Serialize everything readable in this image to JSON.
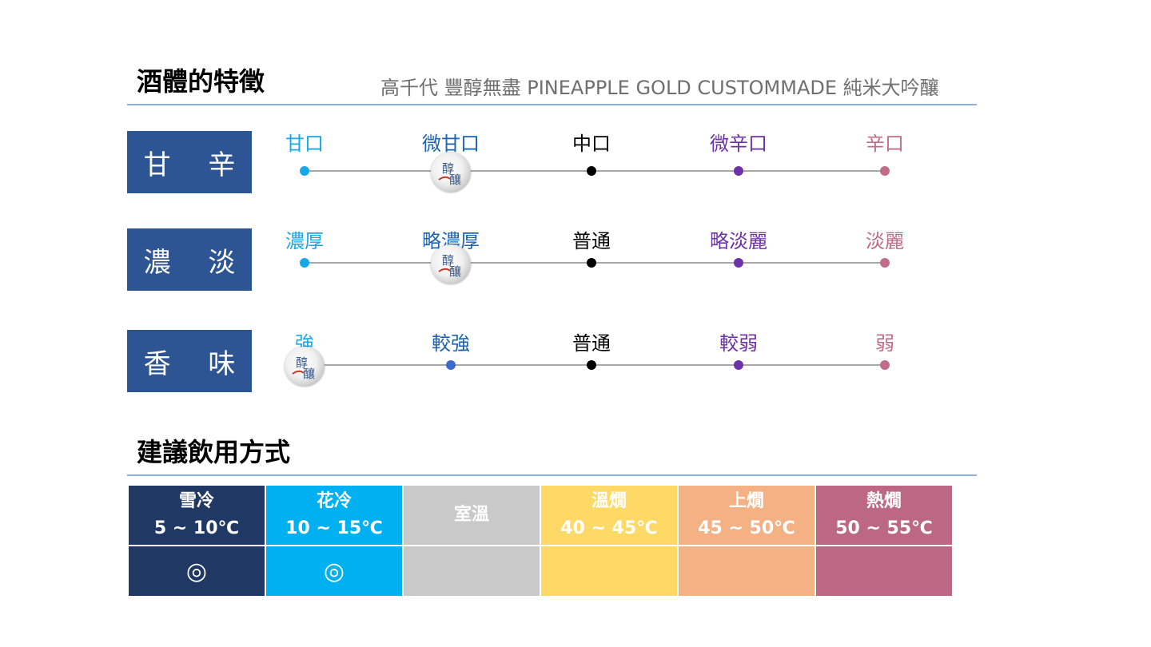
{
  "sections": {
    "character_title": "酒體的特徵",
    "product_name": "高千代 豐醇無盡 PINEAPPLE GOLD CUSTOMMADE 純米大吟釀",
    "drinking_title": "建議飲用方式"
  },
  "traits": [
    {
      "label": "甘 辛",
      "levels": [
        "甘口",
        "微甘口",
        "中口",
        "微辛口",
        "辛口"
      ],
      "selected_index": 1
    },
    {
      "label": "濃 淡",
      "levels": [
        "濃厚",
        "略濃厚",
        "普通",
        "略淡麗",
        "淡麗"
      ],
      "selected_index": 1
    },
    {
      "label": "香 味",
      "levels": [
        "強",
        "較強",
        "普通",
        "較弱",
        "弱"
      ],
      "selected_index": 0
    }
  ],
  "level_colors": [
    "#17a8e8",
    "#1c64b0",
    "#000000",
    "#6e32a8",
    "#c06d86"
  ],
  "marker_icon": "brewery-logo-icon",
  "marker_logo_text": "醇釀",
  "temperatures": [
    {
      "name": "雪冷",
      "range": "5 ~ 10℃",
      "mark": "◎",
      "color": "#1f3864"
    },
    {
      "name": "花冷",
      "range": "10 ~ 15℃",
      "mark": "◎",
      "color": "#00b0f0"
    },
    {
      "name": "室溫",
      "range": "",
      "mark": "",
      "color": "#c9c9c9"
    },
    {
      "name": "溫燗",
      "range": "40 ~ 45℃",
      "mark": "",
      "color": "#ffd966"
    },
    {
      "name": "上燗",
      "range": "45 ~ 50℃",
      "mark": "",
      "color": "#f4b183"
    },
    {
      "name": "熱燗",
      "range": "50 ~ 55℃",
      "mark": "",
      "color": "#bc6783"
    }
  ]
}
